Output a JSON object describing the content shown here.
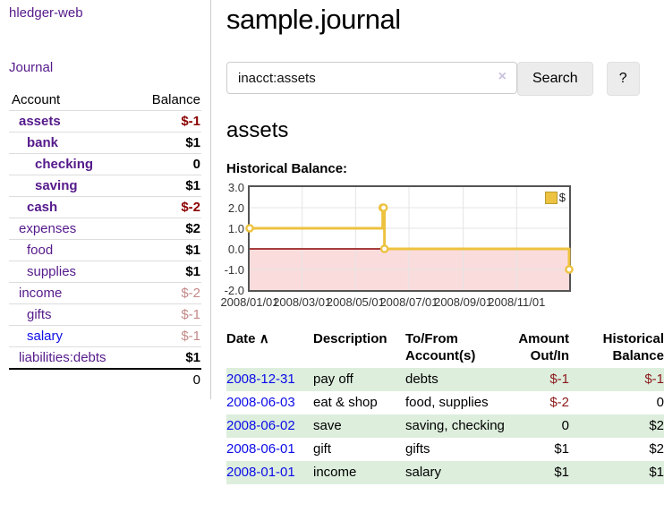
{
  "app": {
    "brand": "hledger-web",
    "nav_journal": "Journal"
  },
  "sidebar": {
    "header": {
      "account": "Account",
      "balance": "Balance"
    },
    "accounts": [
      {
        "name": "assets",
        "balance": "$-1"
      },
      {
        "name": "bank",
        "balance": "$1"
      },
      {
        "name": "checking",
        "balance": "0"
      },
      {
        "name": "saving",
        "balance": "$1"
      },
      {
        "name": "cash",
        "balance": "$-2"
      },
      {
        "name": "expenses",
        "balance": "$2"
      },
      {
        "name": "food",
        "balance": "$1"
      },
      {
        "name": "supplies",
        "balance": "$1"
      },
      {
        "name": "income",
        "balance": "$-2"
      },
      {
        "name": "gifts",
        "balance": "$-1"
      },
      {
        "name": "salary",
        "balance": "$-1"
      },
      {
        "name": "liabilities:debts",
        "balance": "$1"
      }
    ],
    "total": "0"
  },
  "header": {
    "title": "sample.journal"
  },
  "search": {
    "value": "inacct:assets",
    "clear_icon": "×",
    "button_label": "Search",
    "help_label": "?"
  },
  "account_page": {
    "title": "assets",
    "chart_label": "Historical Balance:"
  },
  "chart_data": {
    "type": "line",
    "title": "Historical Balance",
    "step": true,
    "series": [
      {
        "name": "$",
        "points": [
          [
            "2008-01-01",
            1
          ],
          [
            "2008-06-01",
            2
          ],
          [
            "2008-06-02",
            2
          ],
          [
            "2008-06-03",
            0
          ],
          [
            "2008-12-31",
            -1
          ]
        ]
      }
    ],
    "x_ticks": [
      "2008/01/01",
      "2008/03/01",
      "2008/05/01",
      "2008/07/01",
      "2008/09/01",
      "2008/11/01"
    ],
    "y_ticks": [
      3.0,
      2.0,
      1.0,
      0.0,
      -1.0,
      -2.0
    ],
    "xlim": [
      "2008-01-01",
      "2008-12-31"
    ],
    "ylim": [
      -2,
      3
    ],
    "grid": true,
    "legend_position": "top-right",
    "line_color": "#edc240",
    "marker_fill": "#ffffff",
    "zero_line_color": "#8b0000",
    "negative_region_color": "#fbdcdc",
    "grid_color": "#e4e4e4",
    "border_color": "#545454"
  },
  "register": {
    "columns": {
      "date": "Date",
      "sort_indicator": "∧",
      "description": "Description",
      "accounts_line1": "To/From",
      "accounts_line2": "Account(s)",
      "amount_line1": "Amount",
      "amount_line2": "Out/In",
      "balance_line1": "Historical",
      "balance_line2": "Balance"
    },
    "rows": [
      {
        "date": "2008-12-31",
        "description": "pay off",
        "accounts": "debts",
        "amount": "$-1",
        "balance": "$-1"
      },
      {
        "date": "2008-06-03",
        "description": "eat & shop",
        "accounts": "food, supplies",
        "amount": "$-2",
        "balance": "0"
      },
      {
        "date": "2008-06-02",
        "description": "save",
        "accounts": "saving, checking",
        "amount": "0",
        "balance": "$2"
      },
      {
        "date": "2008-06-01",
        "description": "gift",
        "accounts": "gifts",
        "amount": "$1",
        "balance": "$2"
      },
      {
        "date": "2008-01-01",
        "description": "income",
        "accounts": "salary",
        "amount": "$1",
        "balance": "$1"
      }
    ]
  },
  "colors": {
    "link_purple": "#551a8b",
    "link_blue": "#0f0fe8",
    "negative_strong": "#8b0000",
    "negative_table": "#8b1a1a",
    "negative_muted": "#c48888",
    "row_stripe_green": "#ddeedd",
    "chart_line_gold": "#edc240",
    "divider_gray": "#cccccc"
  }
}
